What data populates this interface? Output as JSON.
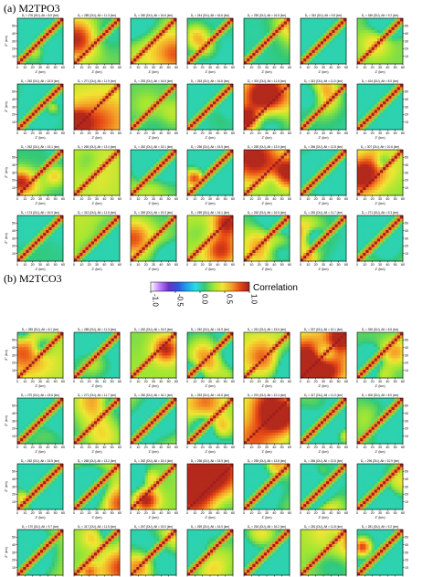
{
  "figure": {
    "panel_a_title": "(a) M2TPO3",
    "panel_b_title": "(b) M2TCO3"
  },
  "colorbar": {
    "label": "Correlation",
    "ticks": [
      "-1.0",
      "-0.5",
      "0.0",
      "0.5",
      "1.0"
    ],
    "colors": [
      "#ffffff",
      "#c080ff",
      "#6a32c8",
      "#2c55dc",
      "#1ea0f0",
      "#28dce6",
      "#32c878",
      "#a0e632",
      "#f0e632",
      "#f5a028",
      "#e64614",
      "#a01e1e"
    ]
  },
  "axes": {
    "xlabel": "Z' (km)",
    "ylabel": "Z'' (km)",
    "xticks": [
      "0",
      "10",
      "20",
      "30",
      "40",
      "50",
      "60"
    ],
    "yticks": [
      "10",
      "20",
      "30",
      "40",
      "50"
    ]
  },
  "chart_data": [
    {
      "type": "heatmap",
      "title": "(a) M2TPO3",
      "xlim": [
        0,
        60
      ],
      "ylim": [
        0,
        60
      ],
      "panels": [
        {
          "header": "D₁ = 276 (DU), Alt = 8.5 (km)"
        },
        {
          "header": "D₁ = 285 (DU), Alt = 11.3 (km)"
        },
        {
          "header": "D₁ = 260 (DU), Alt = 16.6 (km)"
        },
        {
          "header": "D₁ = 244 (DU), Alt = 16.6 (km)"
        },
        {
          "header": "D₁ = 250 (DU), Alt = 16.5 (km)"
        },
        {
          "header": "D₁ = 334 (DU), Alt = 9.8 (km)"
        },
        {
          "header": "D₁ = 346 (DU), Alt = 9.2 (km)"
        },
        {
          "header": "D₁ = 262 (DU), Alt = 15.5 (km)"
        },
        {
          "header": "D₁ = 271 (DU), Alt = 11.9 (km)"
        },
        {
          "header": "D₁ = 253 (DU), Alt = 16.6 (km)"
        },
        {
          "header": "D₁ = 263 (DU), Alt = 16.6 (km)"
        },
        {
          "header": "D₁ = 301 (DU), Alt = 11.8 (km)"
        },
        {
          "header": "D₁ = 312 (DU), Alt = 11.0 (km)"
        },
        {
          "header": "D₁ = 424 (DU), Alt = 8.0 (km)"
        },
        {
          "header": "D₁ = 262 (DU), Alt = 15.1 (km)"
        },
        {
          "header": "D₁ = 265 (DU), Alt = 13.4 (km)"
        },
        {
          "header": "D₁ = 262 (DU), Alt = 15.1 (km)"
        },
        {
          "header": "D₁ = 256 (DU), Alt = 15.5 (km)"
        },
        {
          "header": "D₁ = 255 (DU), Alt = 13.5 (km)"
        },
        {
          "header": "D₁ = 266 (DU), Alt = 12.8 (km)"
        },
        {
          "header": "D₁ = 307 (DU), Alt = 10.6 (km)"
        },
        {
          "header": "D₁ = 174 (DU), Alt = 16.9 (km)"
        },
        {
          "header": "D₁ = 312 (DU), Alt = 11.6 (km)"
        },
        {
          "header": "D₁ = 269 (DU), Alt = 15.3 (km)"
        },
        {
          "header": "D₁ = 269 (DU), Alt = 16.1 (km)"
        },
        {
          "header": "D₁ = 262 (DU), Alt = 16.5 (km)"
        },
        {
          "header": "D₁ = 281 (DU), Alt = 11.7 (km)"
        },
        {
          "header": "D₁ = 271 (DU), Alt = 5.3 (km)"
        }
      ]
    },
    {
      "type": "heatmap",
      "title": "(b) M2TCO3",
      "xlim": [
        0,
        60
      ],
      "ylim": [
        0,
        60
      ],
      "panels": [
        {
          "header": "D₁ = 285 (DU), Alt = 8.1 (km)"
        },
        {
          "header": "D₁ = 285 (DU), Alt = 11.3 (km)"
        },
        {
          "header": "D₁ = 262 (DU), Alt = 15.9 (km)"
        },
        {
          "header": "D₁ = 240 (DU), Alt = 16.9 (km)"
        },
        {
          "header": "D₁ = 261 (DU), Alt = 15.6 (km)"
        },
        {
          "header": "D₁ = 337 (DU), Alt = 10.1 (km)"
        },
        {
          "header": "D₁ = 336 (DU), Alt = 8.6 (km)"
        },
        {
          "header": "D₁ = 270 (DU), Alt = 15.6 (km)"
        },
        {
          "header": "D₁ = 271 (DU), Alt = 11.7 (km)"
        },
        {
          "header": "D₁ = 260 (DU), Alt = 16.1 (km)"
        },
        {
          "header": "D₁ = 253 (DU), Alt = 16.5 (km)"
        },
        {
          "header": "D₁ = 291 (DU), Alt = 12.4 (km)"
        },
        {
          "header": "D₁ = 317 (DU), Alt = 11.0 (km)"
        },
        {
          "header": "D₁ = 406 (DU), Alt = 8.0 (km)"
        },
        {
          "header": "D₁ = 262 (DU), Alt = 15.5 (km)"
        },
        {
          "header": "D₁ = 268 (DU), Alt = 13.2 (km)"
        },
        {
          "header": "D₁ = 262 (DU), Alt = 15.4 (km)"
        },
        {
          "header": "D₁ = 256 (DU), Alt = 15.9 (km)"
        },
        {
          "header": "D₁ = 255 (DU), Alt = 13.8 (km)"
        },
        {
          "header": "D₁ = 266 (DU), Alt = 12.6 (km)"
        },
        {
          "header": "D₁ = 296 (DU), Alt = 10.9 (km)"
        },
        {
          "header": "D₁ = 170 (DU), Alt = 9.7 (km)"
        },
        {
          "header": "D₁ = 317 (DU), Alt = 11.5 (km)"
        },
        {
          "header": "D₁ = 267 (DU), Alt = 15.0 (km)"
        },
        {
          "header": "D₁ = 269 (DU), Alt = 16.0 (km)"
        },
        {
          "header": "D₁ = 264 (DU), Alt = 16.2 (km)"
        },
        {
          "header": "D₁ = 281 (DU), Alt = 11.8 (km)"
        },
        {
          "header": "D₁ = 281 (DU), Alt = 5.2 (km)"
        }
      ]
    }
  ]
}
